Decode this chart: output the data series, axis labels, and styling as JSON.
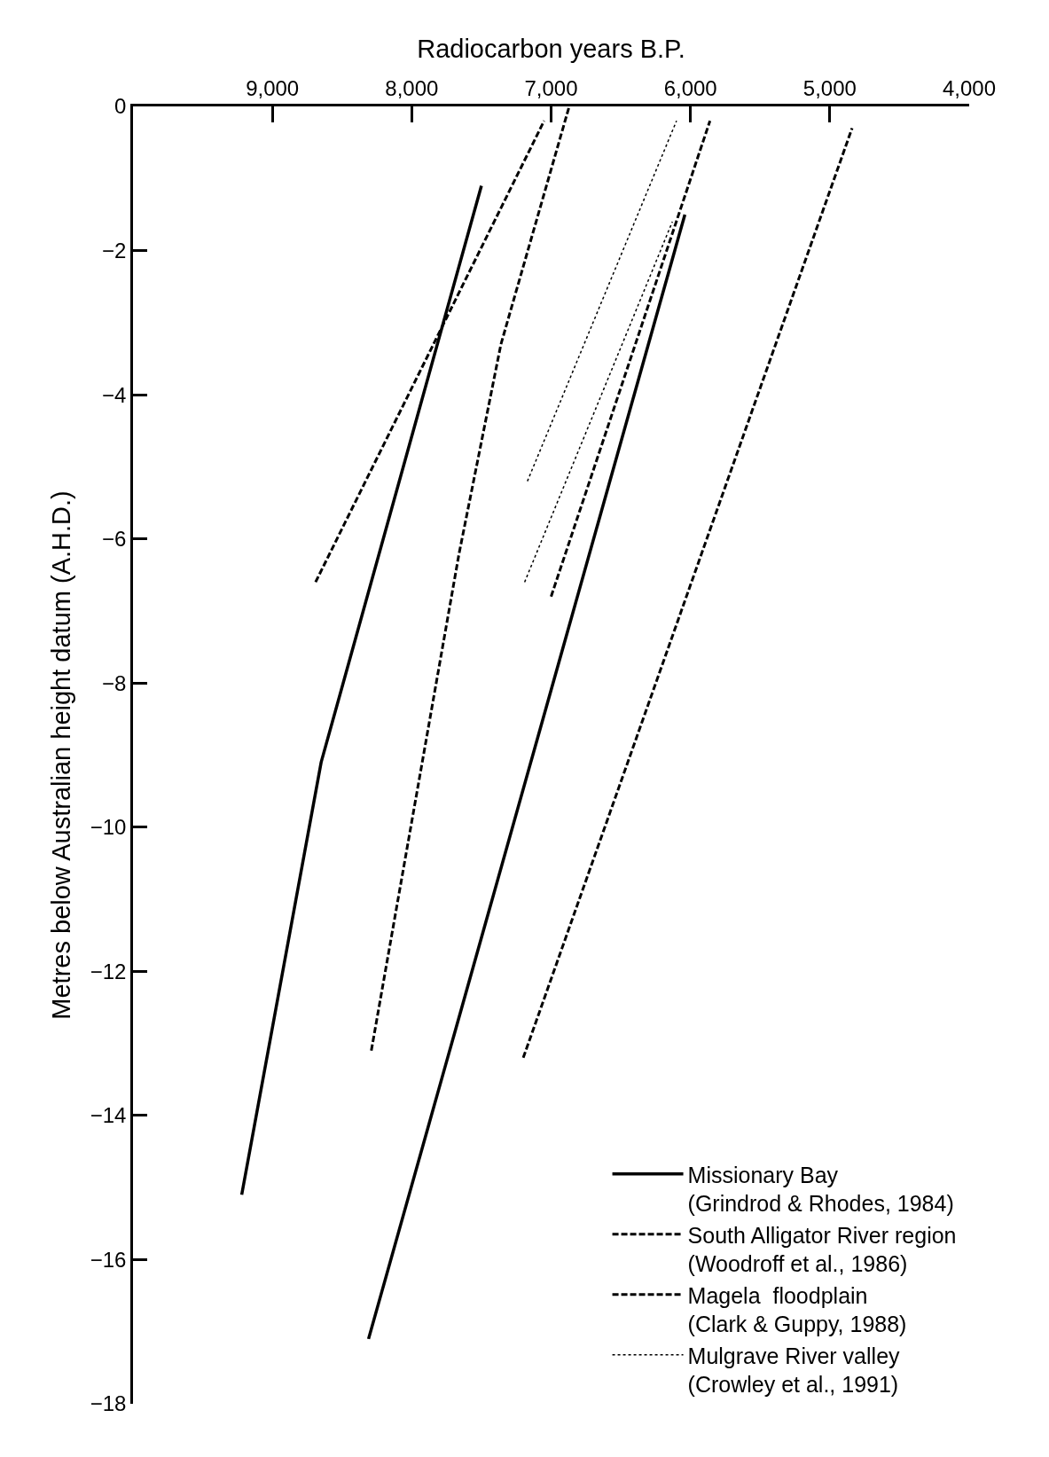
{
  "chart_data": {
    "type": "line",
    "xlabel": "Radiocarbon years B.P.",
    "ylabel": "Metres below Australian height datum (A.H.D.)",
    "xlim": [
      10000,
      4000
    ],
    "xticks": [
      {
        "value": 9000,
        "label": "9,000"
      },
      {
        "value": 8000,
        "label": "8,000"
      },
      {
        "value": 7000,
        "label": "7,000"
      },
      {
        "value": 6000,
        "label": "6,000"
      },
      {
        "value": 5000,
        "label": "5,000"
      },
      {
        "value": 4000,
        "label": "4,000"
      }
    ],
    "ylim": [
      -18,
      0
    ],
    "yticks": [
      {
        "value": 0,
        "label": "0"
      },
      {
        "value": -2,
        "label": "−2"
      },
      {
        "value": -4,
        "label": "−4"
      },
      {
        "value": -6,
        "label": "−6"
      },
      {
        "value": -8,
        "label": "−8"
      },
      {
        "value": -10,
        "label": "−10"
      },
      {
        "value": -12,
        "label": "−12"
      },
      {
        "value": -14,
        "label": "−14"
      },
      {
        "value": -16,
        "label": "−16"
      },
      {
        "value": -18,
        "label": "−18"
      }
    ],
    "grid": false,
    "legend": "bottom right",
    "marker": "none",
    "series": [
      {
        "name": "Missionary Bay\n(Grindrod & Rhodes, 1984)",
        "color": "#000000",
        "line_style": "solid",
        "x": [
          9220,
          8650,
          7500,
          null,
          8310,
          6040
        ],
        "values": [
          -15.1,
          -9.1,
          -1.1,
          null,
          -17.1,
          -1.5
        ]
      },
      {
        "name": "South Alligator River region\n(Woodroff et al., 1986)",
        "color": "#000000",
        "line_style": "dashed",
        "x": [
          8290,
          7660,
          7360,
          6870,
          null,
          7200,
          4840
        ],
        "values": [
          -13.1,
          -6.2,
          -3.3,
          0,
          null,
          -13.2,
          -0.3
        ]
      },
      {
        "name": "Magela  floodplain\n(Clark & Guppy, 1988)",
        "color": "#000000",
        "line_style": "dashed",
        "x": [
          8690,
          7050,
          null,
          7000,
          5860
        ],
        "values": [
          -6.6,
          -0.2,
          null,
          -6.8,
          -0.2
        ]
      },
      {
        "name": "Mulgrave River valley\n(Crowley et al., 1991)",
        "color": "#000000",
        "line_style": "dotted",
        "x": [
          7170,
          6100,
          null,
          7190,
          6130
        ],
        "values": [
          -5.2,
          -0.2,
          null,
          -6.6,
          -1.6
        ]
      }
    ]
  }
}
